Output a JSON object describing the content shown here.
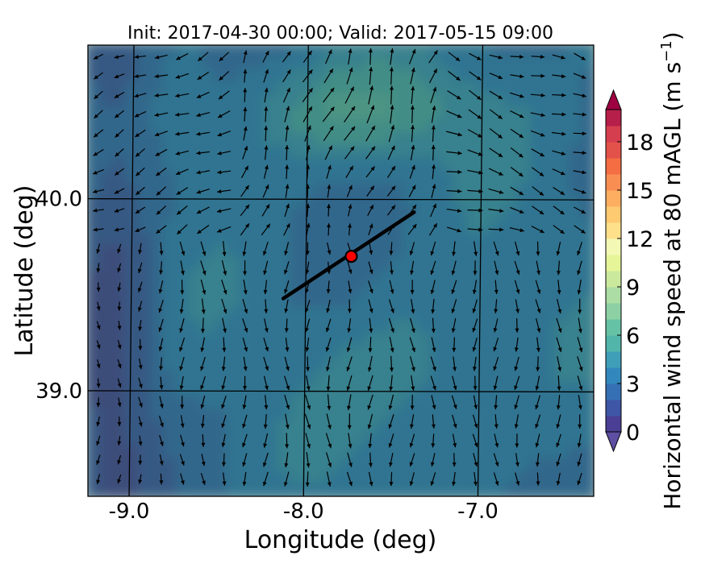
{
  "chart_data": {
    "type": "heatmap",
    "title": "Init: 2017-04-30 00:00; Valid: 2017-05-15 09:00",
    "xlabel": "Longitude (deg)",
    "ylabel": "Latitude (deg)",
    "xlim": [
      -9.25,
      -6.35
    ],
    "ylim": [
      38.45,
      40.8
    ],
    "x_ticks": [
      {
        "value": -9.0,
        "label": "-9.0"
      },
      {
        "value": -8.0,
        "label": "-8.0"
      },
      {
        "value": -7.0,
        "label": "-7.0"
      }
    ],
    "y_ticks": [
      {
        "value": 40.0,
        "label": "40.0"
      },
      {
        "value": 39.0,
        "label": "39.0"
      }
    ],
    "grid": true,
    "colorbar": {
      "label": "Horizontal wind speed at 80 mAGL (m s$^{-1}$)",
      "label_main": "Horizontal wind speed at 80 mAGL (m s",
      "label_sup": "−1",
      "label_tail": ")",
      "min": 0,
      "max": 20,
      "levels": 20,
      "extend": "both",
      "ticks": [
        {
          "value": 0,
          "label": "0"
        },
        {
          "value": 3,
          "label": "3"
        },
        {
          "value": 6,
          "label": "6"
        },
        {
          "value": 9,
          "label": "9"
        },
        {
          "value": 12,
          "label": "12"
        },
        {
          "value": 15,
          "label": "15"
        },
        {
          "value": 18,
          "label": "18"
        }
      ],
      "colors": [
        "#4a3f94",
        "#3e56a5",
        "#3570b4",
        "#3288bd",
        "#3f9fb8",
        "#52b5a9",
        "#66c2a5",
        "#8cd0a4",
        "#abdda4",
        "#cbe99d",
        "#e6f598",
        "#f3f9b4",
        "#fee08b",
        "#fdc971",
        "#fdae61",
        "#f98e52",
        "#f46d43",
        "#e2514a",
        "#d53e4f",
        "#b61f4a"
      ],
      "under_color": "#5e4fa2",
      "over_color": "#9e0142"
    },
    "transect_line": {
      "start": [
        -8.13,
        39.48
      ],
      "end": [
        -7.38,
        39.93
      ],
      "color": "#000000"
    },
    "marker": {
      "lon": -7.74,
      "lat": 39.7,
      "color": "#ff0000",
      "edge": "#000000"
    },
    "overlay_tint": "#2f5d5a",
    "wind_field": {
      "north_west": [
        -115,
        0.55
      ],
      "north_center": [
        20,
        0.6
      ],
      "north_east": [
        110,
        0.55
      ],
      "south": [
        180,
        0.8
      ]
    }
  }
}
